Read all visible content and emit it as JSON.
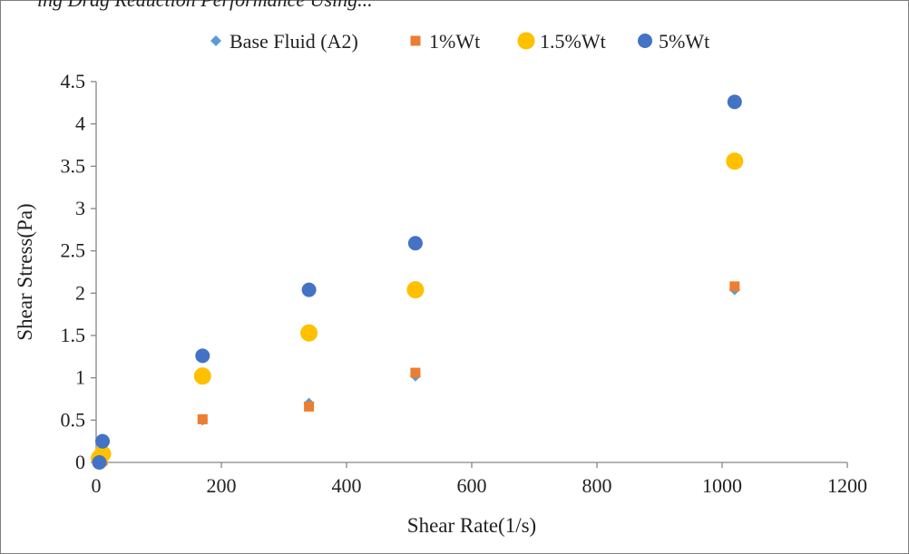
{
  "cropped_heading": "ing Drag Reduction Performance Using...",
  "chart_data": {
    "type": "scatter",
    "title": "",
    "xlabel": "Shear Rate(1/s)",
    "ylabel": "Shear Stress(Pa)",
    "xlim": [
      0,
      1200
    ],
    "ylim": [
      0,
      4.5
    ],
    "x_ticks": [
      "0",
      "200",
      "400",
      "600",
      "800",
      "1000",
      "1200"
    ],
    "y_ticks": [
      "0",
      "0.5",
      "1",
      "1.5",
      "2",
      "2.5",
      "3",
      "3.5",
      "4",
      "4.5"
    ],
    "grid": false,
    "legend_position": "top",
    "series": [
      {
        "name": "Base Fluid (A2)",
        "marker": "diamond",
        "color": "#5b9bd5",
        "points": [
          [
            5.1,
            0.0
          ],
          [
            10.2,
            0.02
          ],
          [
            170,
            0.5
          ],
          [
            340,
            0.7
          ],
          [
            510,
            1.02
          ],
          [
            1020,
            2.04
          ]
        ]
      },
      {
        "name": "1%Wt",
        "marker": "square",
        "color": "#ed7d31",
        "points": [
          [
            5.1,
            0.0
          ],
          [
            10.2,
            0.02
          ],
          [
            170,
            0.51
          ],
          [
            340,
            0.66
          ],
          [
            510,
            1.06
          ],
          [
            1020,
            2.08
          ]
        ]
      },
      {
        "name": "1.5%Wt",
        "marker": "circle-large",
        "color": "#ffc000",
        "points": [
          [
            5.1,
            0.05
          ],
          [
            10.2,
            0.1
          ],
          [
            170,
            1.02
          ],
          [
            340,
            1.53
          ],
          [
            510,
            2.04
          ],
          [
            1020,
            3.56
          ]
        ]
      },
      {
        "name": "5%Wt",
        "marker": "circle",
        "color": "#4472c4",
        "points": [
          [
            5.1,
            0.0
          ],
          [
            10.2,
            0.25
          ],
          [
            170,
            1.26
          ],
          [
            340,
            2.04
          ],
          [
            510,
            2.59
          ],
          [
            1020,
            4.26
          ]
        ]
      }
    ]
  }
}
